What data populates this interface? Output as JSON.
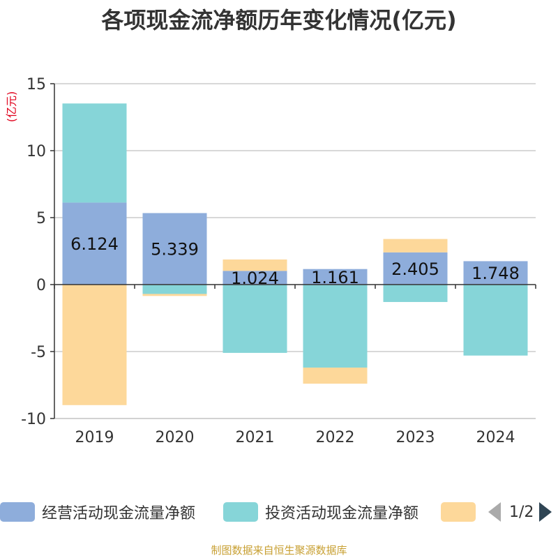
{
  "chart_data": {
    "type": "bar",
    "stacked": true,
    "title": "各项现金流净额历年变化情况(亿元)",
    "ylabel": "(亿元)",
    "xlabel": "",
    "categories": [
      "2019",
      "2020",
      "2021",
      "2022",
      "2023",
      "2024"
    ],
    "ylim": [
      -10,
      15
    ],
    "yticks": [
      -10,
      -5,
      0,
      5,
      10,
      15
    ],
    "grid": true,
    "series": [
      {
        "name": "经营活动现金流量净额",
        "color": "#8eaddb",
        "values": [
          6.124,
          5.339,
          1.024,
          1.161,
          2.405,
          1.748
        ],
        "labels": [
          "6.124",
          "5.339",
          "1.024",
          "1.161",
          "2.405",
          "1.748"
        ]
      },
      {
        "name": "投资活动现金流量净额",
        "color": "#86d5d8",
        "values": [
          7.4,
          -0.7,
          -5.1,
          -6.2,
          -1.3,
          -5.3
        ]
      },
      {
        "name": "",
        "color": "#fdd89a",
        "values": [
          -9.0,
          -0.15,
          0.85,
          -1.2,
          1.0,
          0
        ]
      }
    ]
  },
  "legend": {
    "items": [
      {
        "label": "经营活动现金流量净额",
        "color": "#8eaddb"
      },
      {
        "label": "投资活动现金流量净额",
        "color": "#86d5d8"
      },
      {
        "label": "",
        "color": "#fdd89a"
      }
    ],
    "page_text": "1/2",
    "placement": "bottom"
  },
  "source_note": "制图数据来自恒生聚源数据库"
}
